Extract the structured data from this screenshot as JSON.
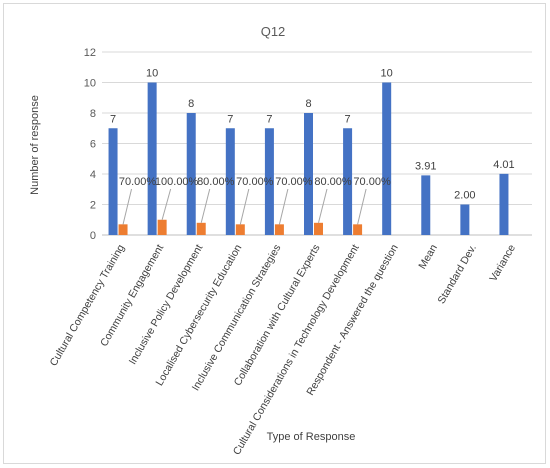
{
  "chart_data": {
    "type": "bar",
    "title": "Q12",
    "xlabel": "Type of Response",
    "ylabel": "Number of response",
    "ylim": [
      0,
      12
    ],
    "yticks": [
      0,
      2,
      4,
      6,
      8,
      10,
      12
    ],
    "grid": true,
    "legend": "none",
    "categories": [
      "Cultural Competency Training",
      "Community Engagement",
      "Inclusive Policy Development",
      "Localised Cybersecurity Education",
      "Inclusive Communication Strategies",
      "Collaboration with Cultural Experts",
      "Cultural Considerations in Technology Development",
      "Respondent - Answered the question",
      "Mean",
      "Standard Dev.",
      "Variance"
    ],
    "series": [
      {
        "values": [
          7,
          10,
          8,
          7,
          7,
          8,
          7,
          10,
          3.91,
          2.0,
          4.01
        ],
        "labels": [
          "7",
          "10",
          "8",
          "7",
          "7",
          "8",
          "7",
          "10",
          "3.91",
          "2.00",
          "4.01"
        ],
        "color": "#4472c4"
      },
      {
        "values": [
          0.7,
          1.0,
          0.8,
          0.7,
          0.7,
          0.8,
          0.7,
          null,
          null,
          null,
          null
        ],
        "labels": [
          "70.00%",
          "100.00%",
          "80.00%",
          "70.00%",
          "70.00%",
          "80.00%",
          "70.00%",
          "",
          "",
          "",
          ""
        ],
        "color": "#ed7d31"
      }
    ]
  }
}
